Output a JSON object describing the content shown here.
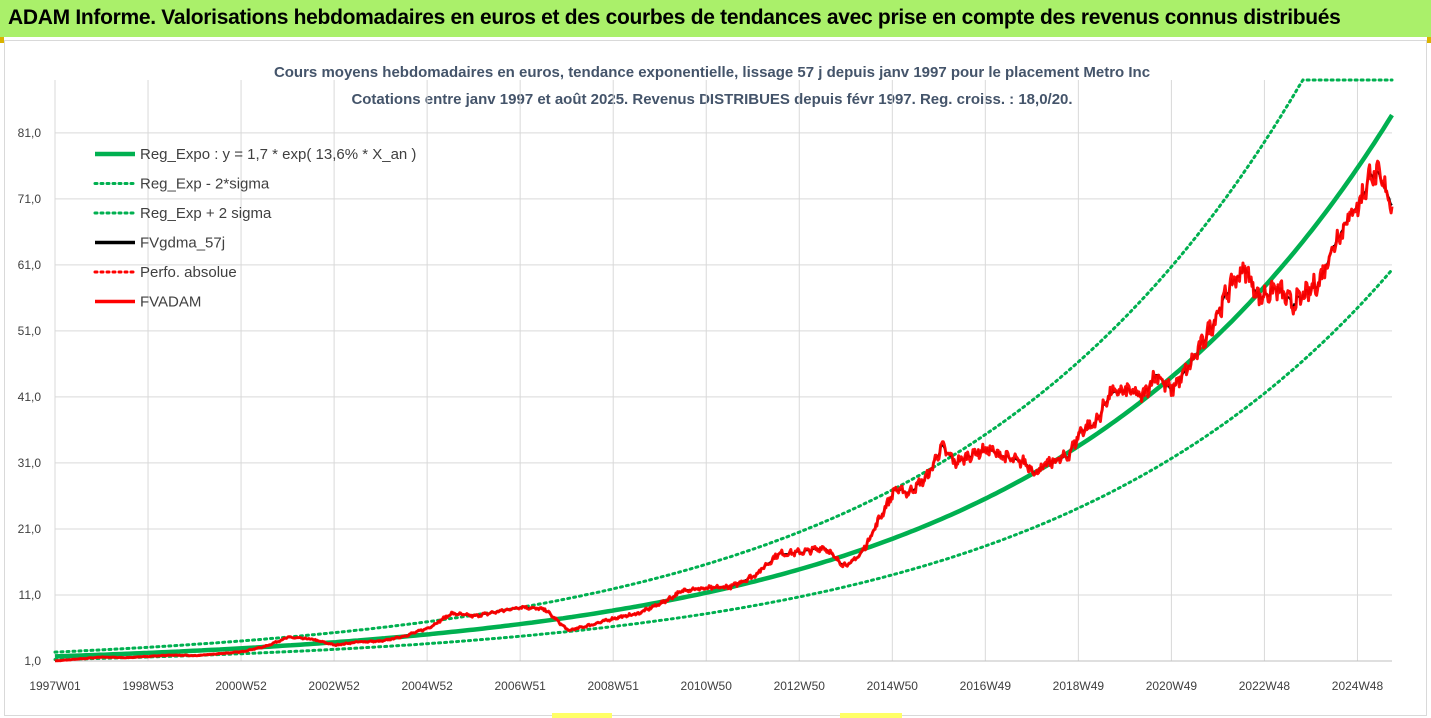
{
  "banner": {
    "title": "ADAM Informe. Valorisations hebdomadaires en euros et des courbes de tendances avec prise en compte des revenus connus distribués"
  },
  "colors": {
    "banner_bg": "#aaf06a",
    "reg_expo": "#00b050",
    "sigma": "#00b050",
    "fvgdma": "#000000",
    "perfo": "#ff0000",
    "fvadam": "#ff0000"
  },
  "chart_data": {
    "type": "line",
    "title": "Cours moyens hebdomadaires en euros, tendance exponentielle, lissage 57 j depuis janv 1997 pour le placement Metro Inc",
    "subtitle": "Cotations entre janv 1997 et août 2025.  Revenus DISTRIBUES depuis févr 1997.  Reg. croiss. : 18,0/20.",
    "y_ticks": [
      "1,0",
      "11,0",
      "21,0",
      "31,0",
      "41,0",
      "51,0",
      "61,0",
      "71,0",
      "81,0"
    ],
    "ylim": [
      1,
      89
    ],
    "x_ticks": [
      "1997W01",
      "1998W53",
      "2000W52",
      "2002W52",
      "2004W52",
      "2006W51",
      "2008W51",
      "2010W50",
      "2012W50",
      "2014W50",
      "2016W49",
      "2018W49",
      "2020W49",
      "2022W48",
      "2024W48"
    ],
    "x_range_years": [
      1997.0,
      2025.65
    ],
    "grid": true,
    "legend_position": "top-left",
    "series": [
      {
        "name": "Reg_Expo : y = 1,7 * exp( 13,6% *  X_an )",
        "kind": "solid",
        "color": "#00b050",
        "a": 1.7,
        "rate": 0.136
      },
      {
        "name": "Reg_Exp - 2*sigma",
        "kind": "dotted",
        "color": "#00b050",
        "factor": 0.72
      },
      {
        "name": "Reg_Exp + 2 sigma",
        "kind": "dotted",
        "color": "#00b050",
        "factor": 1.38
      },
      {
        "name": "FVgdma_57j",
        "kind": "solid",
        "color": "#000000"
      },
      {
        "name": "Perfo. absolue",
        "kind": "dotted",
        "color": "#ff0000"
      },
      {
        "name": "FVADAM",
        "kind": "solid",
        "color": "#ff0000"
      }
    ],
    "fvadam_points": [
      [
        1997.0,
        1.0
      ],
      [
        1997.5,
        1.3
      ],
      [
        1998.0,
        1.6
      ],
      [
        1998.5,
        1.5
      ],
      [
        1999.0,
        1.7
      ],
      [
        1999.5,
        1.9
      ],
      [
        2000.0,
        1.8
      ],
      [
        2000.5,
        2.1
      ],
      [
        2001.0,
        2.4
      ],
      [
        2001.5,
        3.2
      ],
      [
        2002.0,
        4.6
      ],
      [
        2002.5,
        4.3
      ],
      [
        2003.0,
        3.4
      ],
      [
        2003.5,
        3.9
      ],
      [
        2004.0,
        4.0
      ],
      [
        2004.5,
        4.8
      ],
      [
        2005.0,
        6.0
      ],
      [
        2005.5,
        8.2
      ],
      [
        2006.0,
        7.8
      ],
      [
        2006.5,
        8.5
      ],
      [
        2007.0,
        9.2
      ],
      [
        2007.5,
        8.8
      ],
      [
        2008.0,
        5.6
      ],
      [
        2008.5,
        6.5
      ],
      [
        2009.0,
        7.5
      ],
      [
        2009.5,
        8.2
      ],
      [
        2010.0,
        9.8
      ],
      [
        2010.5,
        11.8
      ],
      [
        2011.0,
        12.0
      ],
      [
        2011.5,
        12.3
      ],
      [
        2012.0,
        14.0
      ],
      [
        2012.5,
        17.2
      ],
      [
        2013.0,
        17.5
      ],
      [
        2013.5,
        18.2
      ],
      [
        2013.8,
        16.0
      ],
      [
        2014.0,
        15.5
      ],
      [
        2014.3,
        17.5
      ],
      [
        2014.7,
        23.0
      ],
      [
        2015.0,
        27.0
      ],
      [
        2015.3,
        26.5
      ],
      [
        2015.7,
        29.0
      ],
      [
        2016.0,
        33.5
      ],
      [
        2016.3,
        31.0
      ],
      [
        2016.7,
        32.5
      ],
      [
        2017.0,
        33.0
      ],
      [
        2017.5,
        31.5
      ],
      [
        2017.8,
        31.0
      ],
      [
        2018.0,
        29.5
      ],
      [
        2018.3,
        31.0
      ],
      [
        2018.7,
        32.0
      ],
      [
        2019.0,
        36.0
      ],
      [
        2019.3,
        37.0
      ],
      [
        2019.6,
        41.5
      ],
      [
        2020.0,
        42.0
      ],
      [
        2020.3,
        41.0
      ],
      [
        2020.6,
        44.5
      ],
      [
        2020.9,
        42.0
      ],
      [
        2021.2,
        44.5
      ],
      [
        2021.5,
        48.0
      ],
      [
        2021.8,
        52.0
      ],
      [
        2022.2,
        58.0
      ],
      [
        2022.5,
        60.5
      ],
      [
        2022.8,
        56.0
      ],
      [
        2023.2,
        57.5
      ],
      [
        2023.5,
        55.0
      ],
      [
        2023.8,
        56.5
      ],
      [
        2024.1,
        58.5
      ],
      [
        2024.4,
        64.0
      ],
      [
        2024.7,
        68.0
      ],
      [
        2025.0,
        71.0
      ],
      [
        2025.2,
        75.0
      ],
      [
        2025.4,
        74.0
      ],
      [
        2025.65,
        70.5
      ]
    ]
  }
}
